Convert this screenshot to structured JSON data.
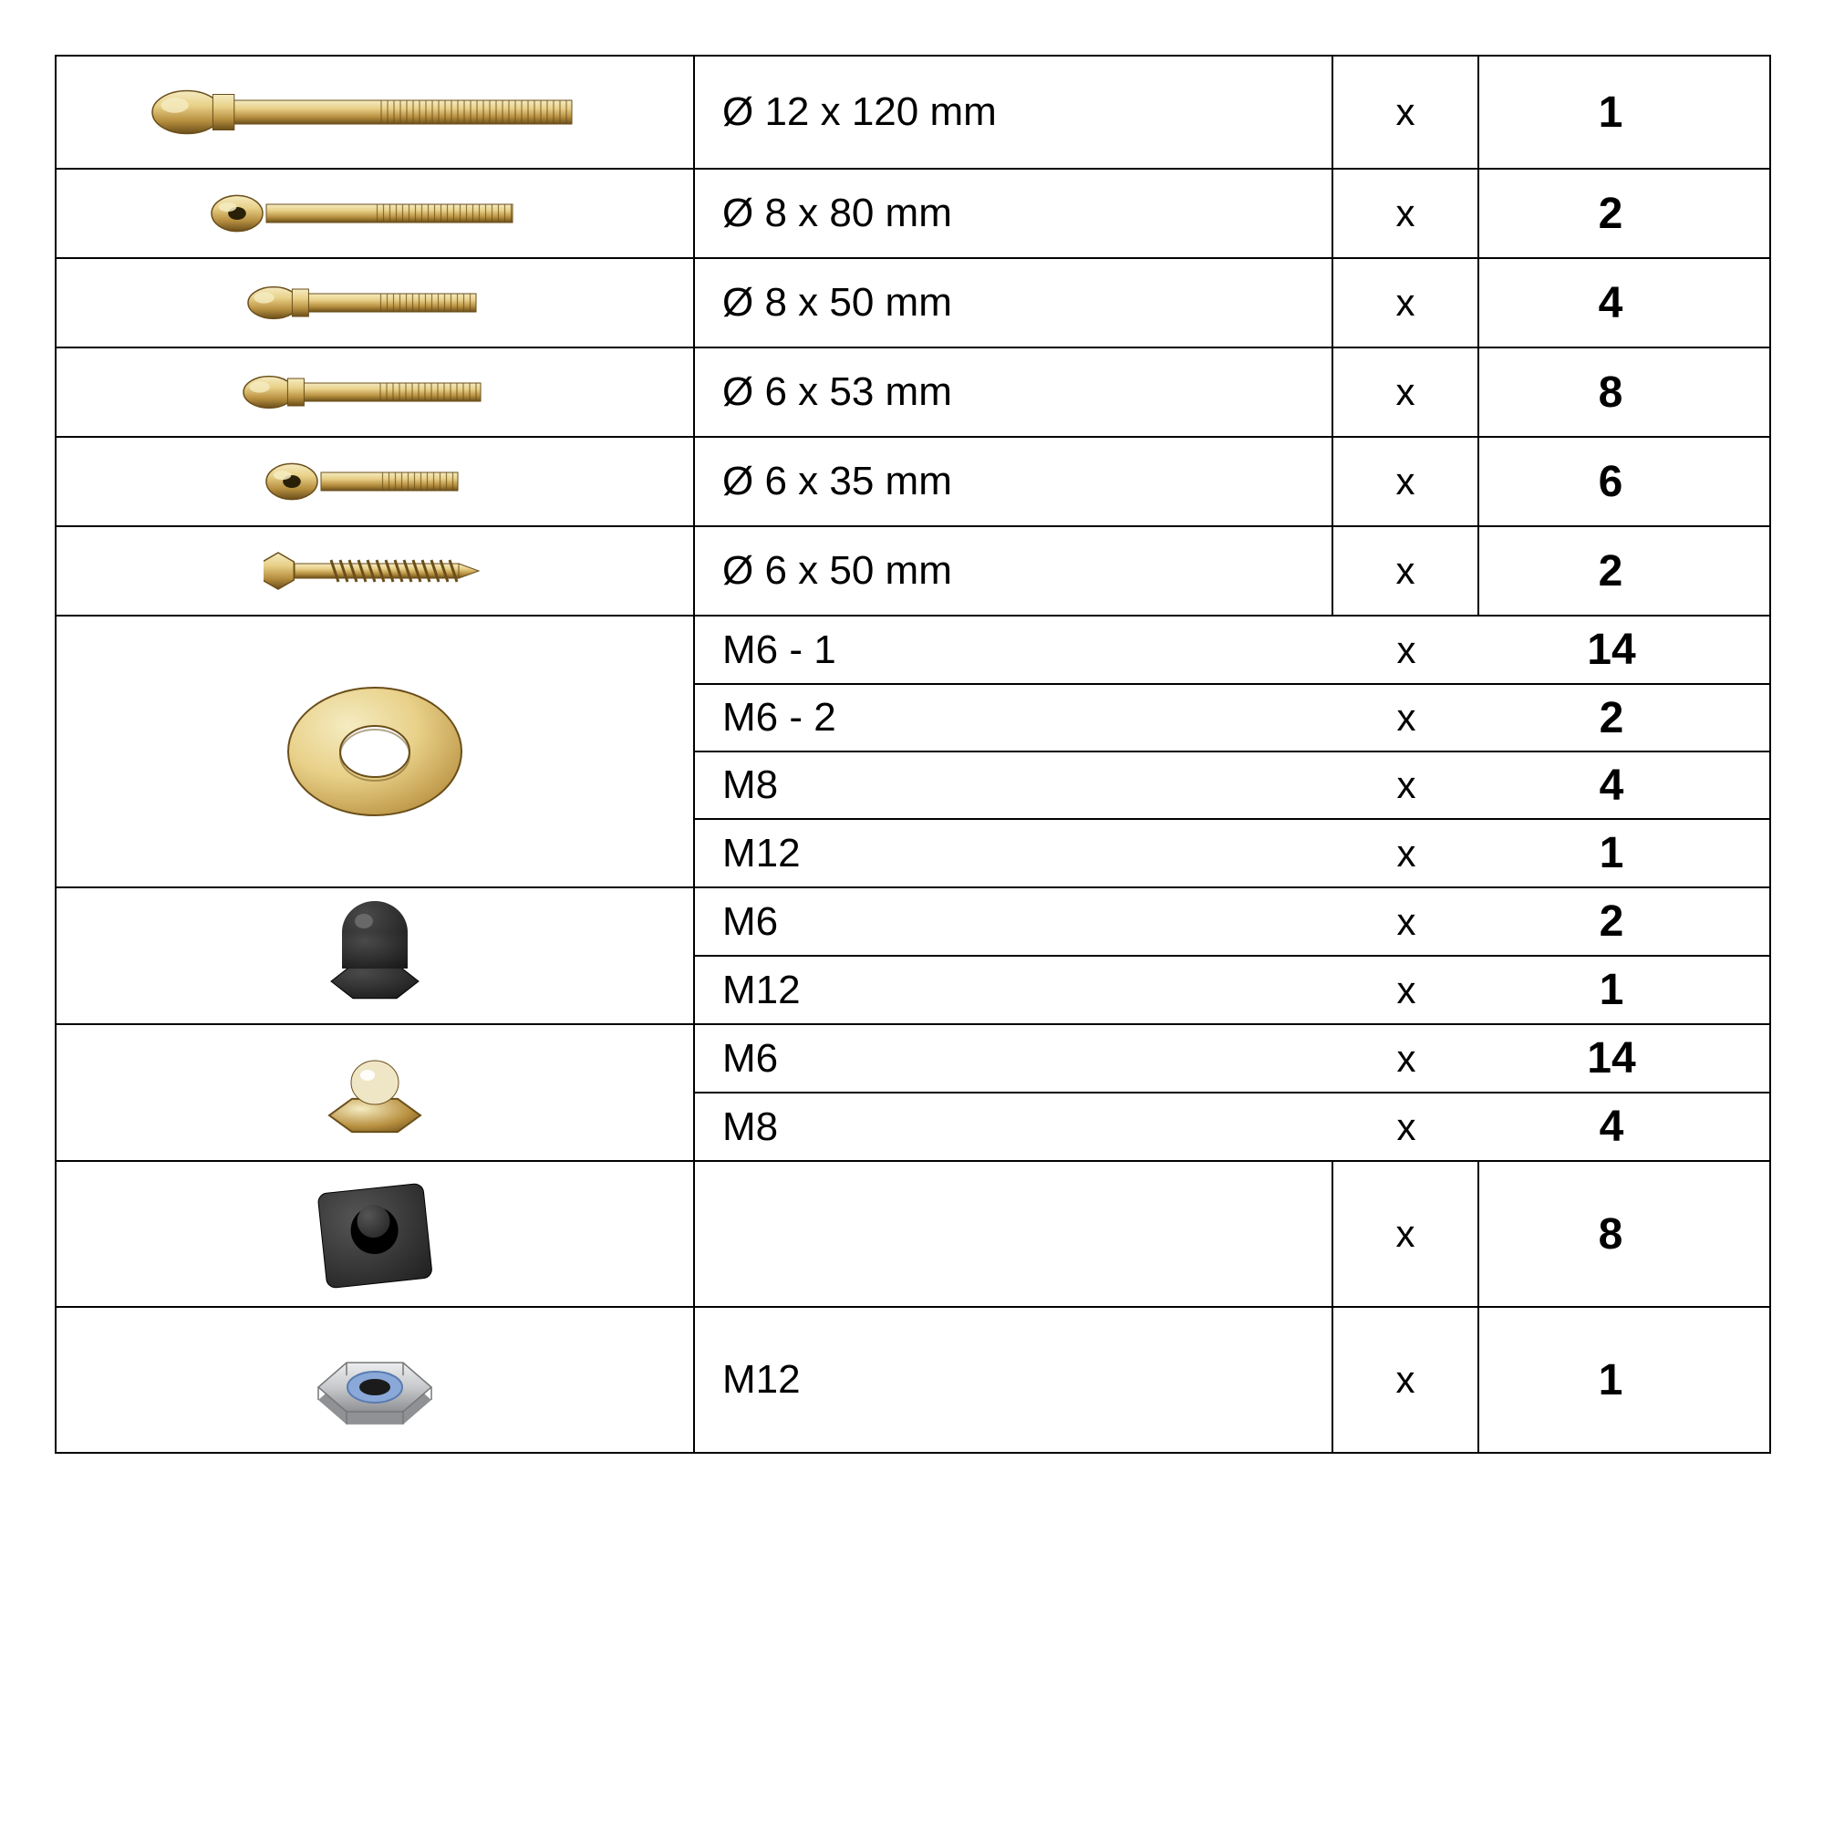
{
  "colors": {
    "border": "#000000",
    "bg": "#ffffff",
    "text": "#000000",
    "brass_light": "#e8d088",
    "brass_mid": "#b89040",
    "brass_dark": "#6a4e1a",
    "brass_hi": "#f5ecc2",
    "black_cap": "#1a1a1a",
    "black_cap_hi": "#4a4a4a",
    "rubber": "#222222",
    "rubber_hi": "#555555",
    "steel": "#c7c9cc",
    "steel_dk": "#8f9194",
    "nylon_ring": "#8aa9d8",
    "cream": "#efe6c6"
  },
  "x_label": "x",
  "rows": [
    {
      "type": "bolt",
      "len": 380,
      "head": "dome",
      "desc": "Ø 12 x 120 mm",
      "qty": "1",
      "h": 124
    },
    {
      "type": "bolt",
      "len": 270,
      "head": "button",
      "desc": "Ø 8 x 80 mm",
      "qty": "2",
      "h": 96
    },
    {
      "type": "bolt",
      "len": 190,
      "head": "dome",
      "desc": "Ø 8 x 50 mm",
      "qty": "4",
      "h": 96
    },
    {
      "type": "bolt",
      "len": 200,
      "head": "dome",
      "desc": "Ø 6 x 53 mm",
      "qty": "8",
      "h": 96
    },
    {
      "type": "bolt",
      "len": 150,
      "head": "button",
      "desc": "Ø 6 x 35 mm",
      "qty": "6",
      "h": 96
    },
    {
      "type": "bolt",
      "len": 180,
      "head": "hex",
      "desc": "Ø 6 x 50 mm",
      "qty": "2",
      "h": 96,
      "wood": true
    },
    {
      "type": "washer",
      "sub": [
        {
          "desc": "M6 - 1",
          "qty": "14"
        },
        {
          "desc": "M6 - 2",
          "qty": "2"
        },
        {
          "desc": "M8",
          "qty": "4"
        },
        {
          "desc": "M12",
          "qty": "1"
        }
      ]
    },
    {
      "type": "blackcap",
      "sub": [
        {
          "desc": "M6",
          "qty": "2"
        },
        {
          "desc": "M12",
          "qty": "1"
        }
      ]
    },
    {
      "type": "capnut",
      "sub": [
        {
          "desc": "M6",
          "qty": "14"
        },
        {
          "desc": "M8",
          "qty": "4"
        }
      ]
    },
    {
      "type": "rubber",
      "desc": "",
      "qty": "8",
      "h": 160
    },
    {
      "type": "locknut",
      "desc": "M12",
      "qty": "1",
      "h": 160
    }
  ]
}
